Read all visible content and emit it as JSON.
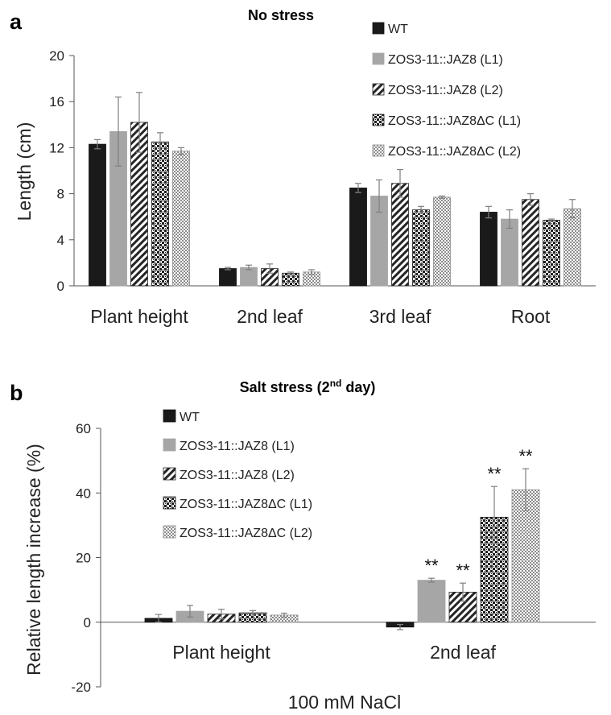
{
  "colors": {
    "WT": "#1a1a1a",
    "L1": "#a6a6a6",
    "axis": "#555555",
    "error": "#7f7f7f"
  },
  "legend_items": [
    {
      "label": "WT",
      "pattern": "solid-black"
    },
    {
      "label": "ZOS3-11::JAZ8 (L1)",
      "pattern": "solid-gray"
    },
    {
      "label": "ZOS3-11::JAZ8 (L2)",
      "pattern": "diagonal-stripes"
    },
    {
      "label": "ZOS3-11::JAZ8ΔC (L1)",
      "pattern": "dark-checker"
    },
    {
      "label": "ZOS3-11::JAZ8ΔC (L2)",
      "pattern": "light-checker"
    }
  ],
  "chart_data": [
    {
      "panel": "a",
      "type": "bar",
      "title": "No stress",
      "ylabel": "Length (cm)",
      "xlabel": "",
      "ylim": [
        0,
        20
      ],
      "yticks": [
        0,
        4,
        8,
        12,
        16,
        20
      ],
      "grid": false,
      "legend_position": "top-right",
      "categories": [
        "Plant height",
        "2nd leaf",
        "3rd leaf",
        "Root"
      ],
      "series": [
        {
          "name": "WT",
          "values": [
            12.3,
            1.5,
            8.5,
            6.4
          ],
          "errors": [
            0.4,
            0.1,
            0.4,
            0.5
          ]
        },
        {
          "name": "ZOS3-11::JAZ8 (L1)",
          "values": [
            13.4,
            1.6,
            7.8,
            5.8
          ],
          "errors": [
            3.0,
            0.2,
            1.4,
            0.8
          ]
        },
        {
          "name": "ZOS3-11::JAZ8 (L2)",
          "values": [
            14.2,
            1.5,
            8.9,
            7.5
          ],
          "errors": [
            2.6,
            0.4,
            1.2,
            0.5
          ]
        },
        {
          "name": "ZOS3-11::JAZ8ΔC (L1)",
          "values": [
            12.5,
            1.1,
            6.6,
            5.7
          ],
          "errors": [
            0.8,
            0.1,
            0.3,
            0.1
          ]
        },
        {
          "name": "ZOS3-11::JAZ8ΔC (L2)",
          "values": [
            11.7,
            1.2,
            7.7,
            6.7
          ],
          "errors": [
            0.3,
            0.2,
            0.1,
            0.8
          ]
        }
      ]
    },
    {
      "panel": "b",
      "type": "bar",
      "title": "Salt stress (2",
      "title_sup": "nd",
      "title_end": " day)",
      "ylabel": "Relative length increase (%)",
      "xlabel": "100 mM NaCl",
      "ylim": [
        -20,
        60
      ],
      "yticks": [
        -20,
        0,
        20,
        40,
        60
      ],
      "grid": false,
      "legend_position": "top-left",
      "categories": [
        "Plant height",
        "2nd leaf"
      ],
      "series": [
        {
          "name": "WT",
          "values": [
            1.2,
            -1.5
          ],
          "errors": [
            1.2,
            0.8
          ],
          "sig": [
            "",
            ""
          ]
        },
        {
          "name": "ZOS3-11::JAZ8 (L1)",
          "values": [
            3.4,
            13.0
          ],
          "errors": [
            1.8,
            0.6
          ],
          "sig": [
            "",
            "**"
          ]
        },
        {
          "name": "ZOS3-11::JAZ8 (L2)",
          "values": [
            2.5,
            9.3
          ],
          "errors": [
            1.5,
            2.8
          ],
          "sig": [
            "",
            "**"
          ]
        },
        {
          "name": "ZOS3-11::JAZ8ΔC (L1)",
          "values": [
            2.9,
            32.5
          ],
          "errors": [
            0.7,
            9.5
          ],
          "sig": [
            "",
            "**"
          ]
        },
        {
          "name": "ZOS3-11::JAZ8ΔC (L2)",
          "values": [
            2.2,
            41.0
          ],
          "errors": [
            0.6,
            6.5
          ],
          "sig": [
            "",
            "**"
          ]
        }
      ]
    }
  ]
}
